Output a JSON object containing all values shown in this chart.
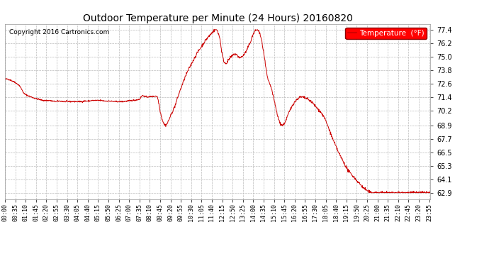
{
  "title": "Outdoor Temperature per Minute (24 Hours) 20160820",
  "copyright": "Copyright 2016 Cartronics.com",
  "legend_label": "Temperature  (°F)",
  "line_color": "#cc0000",
  "background_color": "#ffffff",
  "plot_bg_color": "#ffffff",
  "grid_color": "#bbbbbb",
  "ylim": [
    62.3,
    77.9
  ],
  "yticks": [
    62.9,
    64.1,
    65.3,
    66.5,
    67.7,
    68.9,
    70.2,
    71.4,
    72.6,
    73.8,
    75.0,
    76.2,
    77.4
  ],
  "xtick_interval_minutes": 35,
  "total_minutes": 1440,
  "control_points": [
    [
      0,
      73.0
    ],
    [
      10,
      73.0
    ],
    [
      20,
      72.9
    ],
    [
      35,
      72.7
    ],
    [
      50,
      72.4
    ],
    [
      65,
      71.7
    ],
    [
      80,
      71.5
    ],
    [
      90,
      71.4
    ],
    [
      100,
      71.3
    ],
    [
      115,
      71.2
    ],
    [
      130,
      71.1
    ],
    [
      150,
      71.1
    ],
    [
      170,
      71.0
    ],
    [
      185,
      71.05
    ],
    [
      200,
      71.0
    ],
    [
      215,
      71.0
    ],
    [
      230,
      71.0
    ],
    [
      245,
      71.0
    ],
    [
      260,
      71.0
    ],
    [
      270,
      71.05
    ],
    [
      285,
      71.05
    ],
    [
      295,
      71.1
    ],
    [
      310,
      71.1
    ],
    [
      325,
      71.1
    ],
    [
      340,
      71.05
    ],
    [
      355,
      71.05
    ],
    [
      370,
      71.0
    ],
    [
      385,
      71.0
    ],
    [
      400,
      71.0
    ],
    [
      415,
      71.05
    ],
    [
      430,
      71.1
    ],
    [
      445,
      71.15
    ],
    [
      455,
      71.2
    ],
    [
      465,
      71.55
    ],
    [
      470,
      71.5
    ],
    [
      475,
      71.45
    ],
    [
      480,
      71.4
    ],
    [
      490,
      71.45
    ],
    [
      500,
      71.45
    ],
    [
      510,
      71.5
    ],
    [
      515,
      71.45
    ],
    [
      518,
      71.2
    ],
    [
      521,
      70.8
    ],
    [
      525,
      70.2
    ],
    [
      530,
      69.6
    ],
    [
      535,
      69.2
    ],
    [
      540,
      68.95
    ],
    [
      543,
      68.9
    ],
    [
      546,
      68.95
    ],
    [
      550,
      69.1
    ],
    [
      555,
      69.4
    ],
    [
      560,
      69.7
    ],
    [
      565,
      70.0
    ],
    [
      570,
      70.3
    ],
    [
      575,
      70.6
    ],
    [
      580,
      71.0
    ],
    [
      590,
      71.8
    ],
    [
      600,
      72.5
    ],
    [
      610,
      73.2
    ],
    [
      620,
      73.8
    ],
    [
      630,
      74.3
    ],
    [
      640,
      74.8
    ],
    [
      650,
      75.3
    ],
    [
      660,
      75.7
    ],
    [
      670,
      76.1
    ],
    [
      680,
      76.5
    ],
    [
      690,
      76.8
    ],
    [
      700,
      77.1
    ],
    [
      707,
      77.3
    ],
    [
      712,
      77.4
    ],
    [
      718,
      77.35
    ],
    [
      723,
      77.0
    ],
    [
      728,
      76.5
    ],
    [
      733,
      75.5
    ],
    [
      737,
      74.9
    ],
    [
      742,
      74.5
    ],
    [
      747,
      74.4
    ],
    [
      752,
      74.5
    ],
    [
      757,
      74.7
    ],
    [
      762,
      74.9
    ],
    [
      767,
      75.0
    ],
    [
      772,
      75.15
    ],
    [
      777,
      75.25
    ],
    [
      782,
      75.2
    ],
    [
      787,
      75.05
    ],
    [
      792,
      74.95
    ],
    [
      797,
      74.9
    ],
    [
      802,
      75.0
    ],
    [
      807,
      75.1
    ],
    [
      812,
      75.3
    ],
    [
      817,
      75.5
    ],
    [
      822,
      75.8
    ],
    [
      827,
      76.1
    ],
    [
      832,
      76.4
    ],
    [
      837,
      76.8
    ],
    [
      842,
      77.1
    ],
    [
      847,
      77.3
    ],
    [
      852,
      77.4
    ],
    [
      855,
      77.4
    ],
    [
      860,
      77.2
    ],
    [
      865,
      76.8
    ],
    [
      870,
      76.2
    ],
    [
      875,
      75.4
    ],
    [
      880,
      74.5
    ],
    [
      885,
      73.6
    ],
    [
      890,
      72.9
    ],
    [
      895,
      72.6
    ],
    [
      900,
      72.3
    ],
    [
      905,
      71.8
    ],
    [
      910,
      71.2
    ],
    [
      915,
      70.6
    ],
    [
      920,
      70.0
    ],
    [
      925,
      69.5
    ],
    [
      930,
      69.1
    ],
    [
      935,
      68.95
    ],
    [
      940,
      68.9
    ],
    [
      944,
      69.0
    ],
    [
      950,
      69.3
    ],
    [
      957,
      69.8
    ],
    [
      964,
      70.2
    ],
    [
      971,
      70.6
    ],
    [
      978,
      70.9
    ],
    [
      985,
      71.1
    ],
    [
      992,
      71.3
    ],
    [
      999,
      71.4
    ],
    [
      1005,
      71.4
    ],
    [
      1012,
      71.35
    ],
    [
      1018,
      71.3
    ],
    [
      1025,
      71.2
    ],
    [
      1032,
      71.1
    ],
    [
      1040,
      70.9
    ],
    [
      1050,
      70.6
    ],
    [
      1060,
      70.3
    ],
    [
      1070,
      70.0
    ],
    [
      1080,
      69.6
    ],
    [
      1090,
      69.0
    ],
    [
      1100,
      68.3
    ],
    [
      1110,
      67.6
    ],
    [
      1120,
      67.0
    ],
    [
      1130,
      66.4
    ],
    [
      1140,
      65.9
    ],
    [
      1150,
      65.4
    ],
    [
      1160,
      64.9
    ],
    [
      1170,
      64.6
    ],
    [
      1180,
      64.3
    ],
    [
      1190,
      64.0
    ],
    [
      1200,
      63.7
    ],
    [
      1210,
      63.4
    ],
    [
      1220,
      63.2
    ],
    [
      1230,
      63.0
    ],
    [
      1239,
      62.9
    ],
    [
      1440,
      62.9
    ]
  ]
}
